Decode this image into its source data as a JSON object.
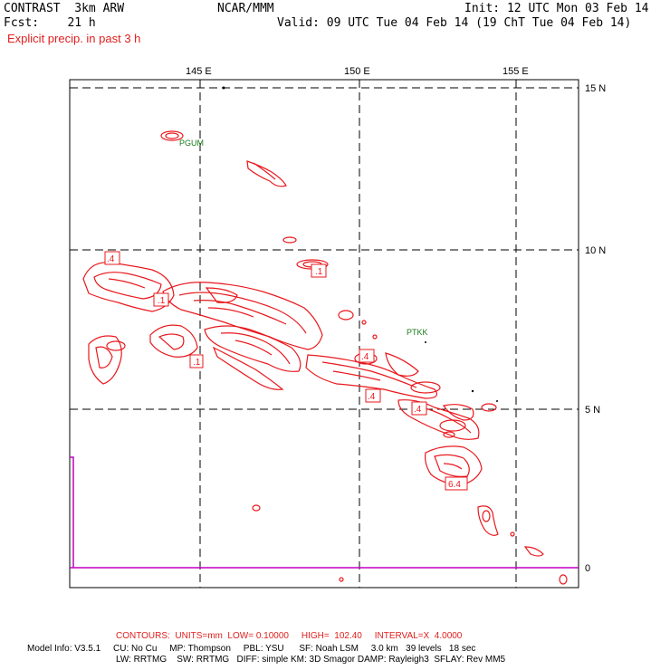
{
  "header": {
    "title_left": "CONTRAST  3km ARW",
    "center": "NCAR/MMM",
    "init": "Init: 12 UTC Mon 03 Feb 14",
    "fcst": "Fcst:    21 h",
    "valid": "Valid: 09 UTC Tue 04 Feb 14 (19 ChT Tue 04 Feb 14)",
    "field": "Explicit precip. in past 3 h"
  },
  "axes": {
    "lon_labels": [
      "145 E",
      "150 E",
      "155 E"
    ],
    "lat_labels": [
      "15 N",
      "10 N",
      "5 N",
      "0"
    ]
  },
  "stations": [
    "PGUM",
    "PTKK"
  ],
  "contour_labels": [
    ".4",
    ".1",
    ".1",
    ".1",
    ".4",
    ".4",
    ".4",
    "6.4"
  ],
  "footer": {
    "contours": "CONTOURS:  UNITS=mm  LOW= 0.10000     HIGH=  102.40     INTERVAL=X  4.0000",
    "model_info_1": "Model Info: V3.5.1     CU: No Cu     MP: Thompson     PBL: YSU      SF: Noah LSM     3.0 km   39 levels   18 sec",
    "model_info_2": "LW: RRTMG    SW: RRTMG   DIFF: simple KM: 3D Smagor DAMP: Rayleigh3  SFLAY: Rev MM5"
  },
  "colors": {
    "contour": "#e8191e",
    "station": "#1a7a1a",
    "equator": "#c000c0",
    "grid": "#000000"
  }
}
